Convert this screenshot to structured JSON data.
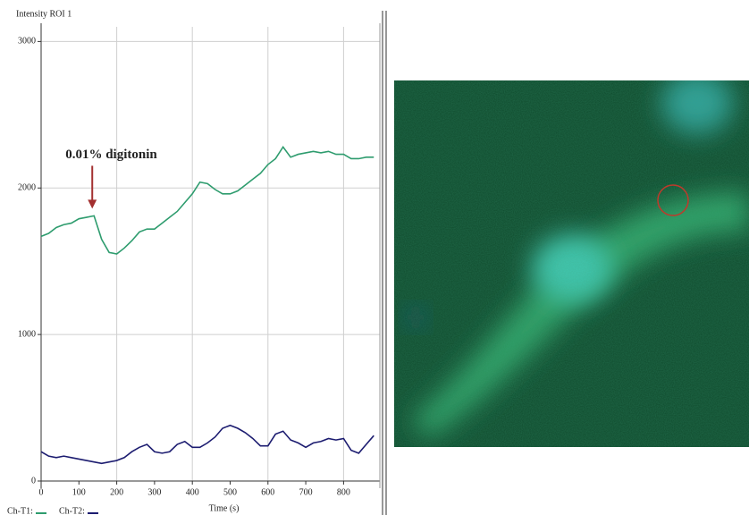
{
  "chart_data": {
    "type": "line",
    "y_label": "Intensity ROI 1",
    "x_label": "Time (s)",
    "annotation": {
      "text": "0.01% digitonin",
      "x": 140,
      "y": 1810
    },
    "x": [
      0,
      20,
      40,
      60,
      80,
      100,
      120,
      140,
      160,
      180,
      200,
      220,
      240,
      260,
      280,
      300,
      320,
      340,
      360,
      380,
      400,
      420,
      440,
      460,
      480,
      500,
      520,
      540,
      560,
      580,
      600,
      620,
      640,
      660,
      680,
      700,
      720,
      740,
      760,
      780,
      800,
      820,
      840,
      860,
      880
    ],
    "series": [
      {
        "name": "Ch-T1:",
        "color": "#2e9c6e",
        "values": [
          1670,
          1690,
          1730,
          1750,
          1760,
          1790,
          1800,
          1810,
          1650,
          1560,
          1550,
          1590,
          1640,
          1700,
          1720,
          1720,
          1760,
          1800,
          1840,
          1900,
          1960,
          2040,
          2030,
          1990,
          1960,
          1960,
          1980,
          2020,
          2060,
          2100,
          2160,
          2200,
          2280,
          2210,
          2230,
          2240,
          2250,
          2240,
          2250,
          2230,
          2230,
          2200,
          2200,
          2210,
          2210
        ]
      },
      {
        "name": "Ch-T2:",
        "color": "#1c1c70",
        "values": [
          200,
          170,
          160,
          170,
          160,
          150,
          140,
          130,
          120,
          130,
          140,
          160,
          200,
          230,
          250,
          200,
          190,
          200,
          250,
          270,
          230,
          230,
          260,
          300,
          360,
          380,
          360,
          330,
          290,
          240,
          240,
          320,
          340,
          280,
          260,
          230,
          260,
          270,
          290,
          280,
          290,
          210,
          190,
          250,
          310
        ]
      }
    ],
    "xlim": [
      0,
      896
    ],
    "ylim": [
      0,
      3100
    ],
    "xticks": [
      0,
      100,
      200,
      300,
      400,
      500,
      600,
      700,
      800
    ],
    "yticks": [
      0,
      1000,
      2000,
      3000
    ],
    "grid": true,
    "legend": "bottom-left"
  }
}
